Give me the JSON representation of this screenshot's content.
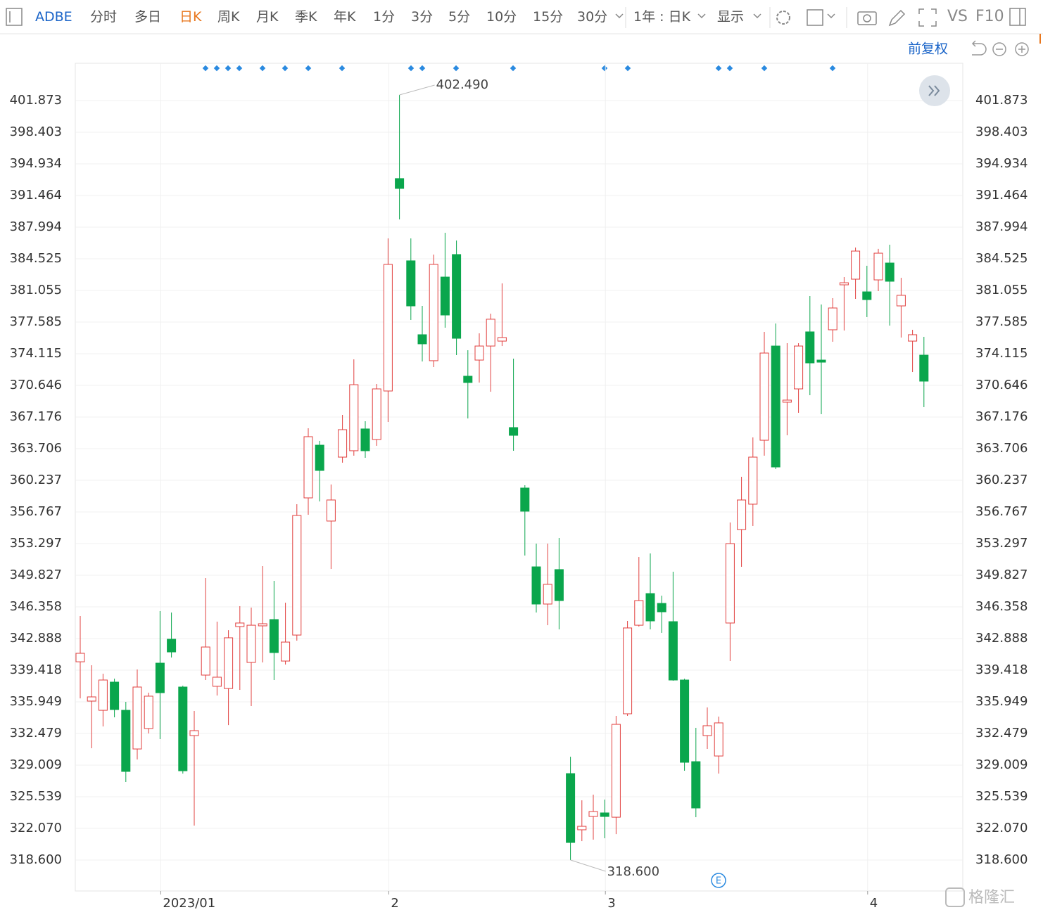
{
  "toolbar": {
    "symbol": "ADBE",
    "periods": [
      "分时",
      "多日",
      "日K",
      "周K",
      "月K",
      "季K",
      "年K",
      "1分",
      "3分",
      "5分",
      "10分",
      "15分",
      "30分"
    ],
    "active_period": 2,
    "range": "1年 : 日K",
    "display": "显示",
    "vs": "VS",
    "f10": "F10",
    "adjust": "前复权"
  },
  "watermark": "格隆汇",
  "chart_data": {
    "type": "candlestick",
    "categories": [
      null,
      null,
      null,
      null,
      null,
      null,
      null,
      "2023/01",
      null,
      null,
      null,
      null,
      null,
      null,
      null,
      null,
      null,
      null,
      null,
      null,
      null,
      null,
      null,
      null,
      null,
      null,
      null,
      "2",
      null,
      null,
      null,
      null,
      null,
      null,
      null,
      null,
      null,
      null,
      null,
      null,
      null,
      null,
      null,
      null,
      null,
      null,
      "3",
      null,
      null,
      null,
      null,
      null,
      null,
      null,
      null,
      null,
      null,
      null,
      null,
      null,
      null,
      null,
      null,
      null,
      null,
      null,
      null,
      null,
      null,
      "4",
      null,
      null,
      null,
      null,
      null
    ],
    "open": [
      340.34,
      336.03,
      335.02,
      338.11,
      335.02,
      330.78,
      333.02,
      340.19,
      342.81,
      337.57,
      332.25,
      338.88,
      337.65,
      337.41,
      344.2,
      340.27,
      344.28,
      344.97,
      340.42,
      343.27,
      358.31,
      364.09,
      355.77,
      362.78,
      363.48,
      365.87,
      364.71,
      370.03,
      393.32,
      384.3,
      376.2,
      373.35,
      382.52,
      384.99,
      371.65,
      373.42,
      374.96,
      375.5,
      366.02,
      359.39,
      350.75,
      346.67,
      350.45,
      328.08,
      321.92,
      323.38,
      323.77,
      323.3,
      334.64,
      344.35,
      347.82,
      346.74,
      344.74,
      338.34,
      329.39,
      332.25,
      330.01,
      344.59,
      354.84,
      357.62,
      364.63,
      374.96,
      368.8,
      370.26,
      376.51,
      373.42,
      376.74,
      381.67,
      382.29,
      380.9,
      382.21,
      384.06,
      379.36,
      375.5,
      373.96
    ],
    "high": [
      345.36,
      339.96,
      339.03,
      338.49,
      335.95,
      339.5,
      336.95,
      345.9,
      345.74,
      337.72,
      334.95,
      349.52,
      344.74,
      343.81,
      346.44,
      346.28,
      350.83,
      349.21,
      346.82,
      357.62,
      365.94,
      364.56,
      359.78,
      367.41,
      373.5,
      366.71,
      370.8,
      386.76,
      402.49,
      386.76,
      379.36,
      384.99,
      387.38,
      386.53,
      374.5,
      376.35,
      378.51,
      381.83,
      373.58,
      359.7,
      353.3,
      353.3,
      353.92,
      329.93,
      325.15,
      325.77,
      325.23,
      334.41,
      344.82,
      351.83,
      352.22,
      347.59,
      350.21,
      338.49,
      333.1,
      335.33,
      334.33,
      355.61,
      360.62,
      364.94,
      376.51,
      377.43,
      375.27,
      375.27,
      380.44,
      379.51,
      380.21,
      382.52,
      385.76,
      383.76,
      385.61,
      386.07,
      382.44,
      376.74,
      375.97
    ],
    "low": [
      336.33,
      330.86,
      333.25,
      334.25,
      327.16,
      329.63,
      332.48,
      331.86,
      340.81,
      328.08,
      322.38,
      338.34,
      336.64,
      333.4,
      337.26,
      335.49,
      340.27,
      338.34,
      340.04,
      342.66,
      356.46,
      357.92,
      350.52,
      362.17,
      362.94,
      362.71,
      364.02,
      366.64,
      388.84,
      377.82,
      373.27,
      372.65,
      376.97,
      373.96,
      367.02,
      370.96,
      369.95,
      374.96,
      363.48,
      351.99,
      345.74,
      344.35,
      343.89,
      318.6,
      320.68,
      320.84,
      320.99,
      321.45,
      334.41,
      344.2,
      343.89,
      343.51,
      338.26,
      328.39,
      323.3,
      330.78,
      328.08,
      340.42,
      350.75,
      355.23,
      362.94,
      361.47,
      365.17,
      367.64,
      369.57,
      367.49,
      375.43,
      376.66,
      380.13,
      378.13,
      380.98,
      377.2,
      375.89,
      372.11,
      368.26
    ],
    "close": [
      341.27,
      336.49,
      338.34,
      335.1,
      328.32,
      337.57,
      336.57,
      336.95,
      341.42,
      328.39,
      332.79,
      341.96,
      338.65,
      342.97,
      344.59,
      344.35,
      344.51,
      341.35,
      342.5,
      356.38,
      365.02,
      361.32,
      358.08,
      365.79,
      370.72,
      363.48,
      370.26,
      383.91,
      392.24,
      379.36,
      375.2,
      383.91,
      378.36,
      375.81,
      370.96,
      374.96,
      377.9,
      375.89,
      365.17,
      356.85,
      346.67,
      348.83,
      347.05,
      320.53,
      322.3,
      323.92,
      323.38,
      333.48,
      344.05,
      347.05,
      344.82,
      345.82,
      338.34,
      329.32,
      324.31,
      333.33,
      333.64,
      353.3,
      358.08,
      362.78,
      374.19,
      361.7,
      369.03,
      374.96,
      373.11,
      373.19,
      379.13,
      381.9,
      385.37,
      380.05,
      385.14,
      382.06,
      380.52,
      376.2,
      371.11
    ],
    "up_color": "#e2403f",
    "down_color": "#0aa64c",
    "max_label": "402.490",
    "min_label": "318.600",
    "ylim": [
      315.21,
      405.96
    ],
    "yticks": [
      {
        "value": 318.6,
        "label": "318.600"
      },
      {
        "value": 322.07,
        "label": "322.070"
      },
      325.539,
      329.009,
      332.479,
      335.949,
      339.418,
      342.888,
      346.358,
      349.827,
      353.297,
      356.767,
      360.237,
      363.706,
      367.176,
      370.646,
      374.115,
      377.585,
      381.055,
      384.525,
      387.994,
      391.464,
      394.934,
      398.403,
      401.873
    ],
    "grid": true
  }
}
